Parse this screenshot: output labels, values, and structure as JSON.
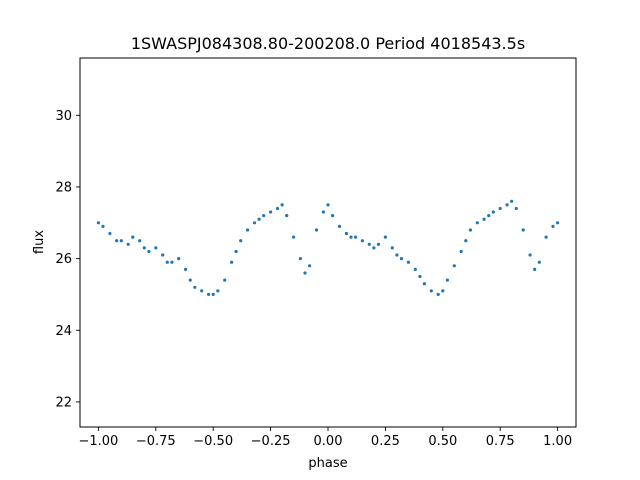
{
  "chart_data": {
    "type": "scatter",
    "title": "1SWASPJ084308.80-200208.0 Period 4018543.5s",
    "xlabel": "phase",
    "ylabel": "flux",
    "xlim": [
      -1.08,
      1.08
    ],
    "ylim": [
      21.3,
      31.6
    ],
    "xticks": [
      -1.0,
      -0.75,
      -0.5,
      -0.25,
      0.0,
      0.25,
      0.5,
      0.75,
      1.0
    ],
    "xtick_labels": [
      "−1.00",
      "−0.75",
      "−0.50",
      "−0.25",
      "0.00",
      "0.25",
      "0.50",
      "0.75",
      "1.00"
    ],
    "yticks": [
      22,
      24,
      26,
      28,
      30
    ],
    "ytick_labels": [
      "22",
      "24",
      "26",
      "28",
      "30"
    ],
    "grid": false,
    "point_color": "#1f77b4",
    "series": [
      {
        "x": [
          -1.0,
          -0.98,
          -0.95,
          -0.92,
          -0.9,
          -0.87,
          -0.85,
          -0.82,
          -0.8,
          -0.78,
          -0.75,
          -0.72,
          -0.7,
          -0.68,
          -0.65,
          -0.62,
          -0.6,
          -0.58,
          -0.55,
          -0.52,
          -0.5,
          -0.48,
          -0.45,
          -0.42,
          -0.4,
          -0.38,
          -0.35,
          -0.32,
          -0.3,
          -0.28,
          -0.25,
          -0.22,
          -0.2,
          -0.18,
          -0.15,
          -0.12,
          -0.1,
          -0.08,
          -0.05,
          -0.02,
          0.0,
          0.02,
          0.05,
          0.08,
          0.1,
          0.12,
          0.15,
          0.18,
          0.2,
          0.22,
          0.25,
          0.28,
          0.3,
          0.32,
          0.35,
          0.38,
          0.4,
          0.42,
          0.45,
          0.48,
          0.5,
          0.52,
          0.55,
          0.58,
          0.6,
          0.62,
          0.65,
          0.68,
          0.7,
          0.72,
          0.75,
          0.78,
          0.8,
          0.82,
          0.85,
          0.88,
          0.9,
          0.92,
          0.95,
          0.98,
          1.0
        ],
        "y": [
          27.0,
          26.9,
          26.7,
          26.5,
          26.5,
          26.4,
          26.6,
          26.5,
          26.3,
          26.2,
          26.3,
          26.1,
          25.9,
          25.9,
          26.0,
          25.7,
          25.4,
          25.2,
          25.1,
          25.0,
          25.0,
          25.1,
          25.4,
          25.9,
          26.2,
          26.5,
          26.8,
          27.0,
          27.1,
          27.2,
          27.3,
          27.4,
          27.5,
          27.2,
          26.6,
          26.0,
          25.6,
          25.8,
          26.8,
          27.3,
          27.5,
          27.2,
          26.9,
          26.7,
          26.6,
          26.6,
          26.5,
          26.4,
          26.3,
          26.4,
          26.6,
          26.3,
          26.1,
          26.0,
          25.9,
          25.7,
          25.5,
          25.3,
          25.1,
          25.0,
          25.1,
          25.4,
          25.8,
          26.2,
          26.5,
          26.8,
          27.0,
          27.1,
          27.2,
          27.3,
          27.4,
          27.5,
          27.6,
          27.4,
          26.8,
          26.1,
          25.7,
          25.9,
          26.6,
          26.9,
          27.0
        ]
      }
    ]
  }
}
